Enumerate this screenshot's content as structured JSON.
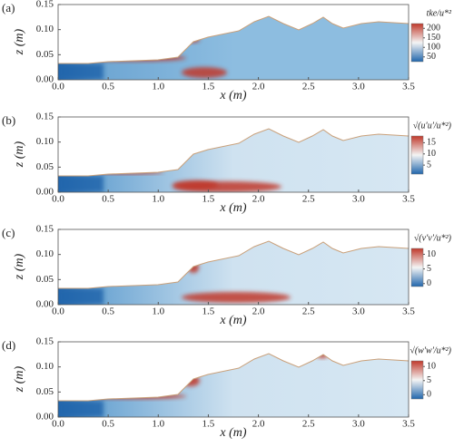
{
  "chart_data": [
    {
      "type": "heatmap",
      "panel": "(a)",
      "xlabel": "x (m)",
      "ylabel": "z (m)",
      "colorbar_label": "tke/u*²",
      "xlim": [
        0,
        3.5
      ],
      "ylim": [
        0,
        0.15
      ],
      "xticks": [
        {
          "value": 0,
          "label": "0.0"
        },
        {
          "value": 0.5,
          "label": "0.5"
        },
        {
          "value": 1,
          "label": "1.0"
        },
        {
          "value": 1.5,
          "label": "1.5"
        },
        {
          "value": 2,
          "label": "2.0"
        },
        {
          "value": 2.5,
          "label": "2.5"
        },
        {
          "value": 3,
          "label": "3.0"
        },
        {
          "value": 3.5,
          "label": "3.5"
        }
      ],
      "yticks": [
        {
          "value": 0,
          "label": "0.00"
        },
        {
          "value": 0.05,
          "label": "0.05"
        },
        {
          "value": 0.1,
          "label": "0.10"
        },
        {
          "value": 0.15,
          "label": "0.15"
        }
      ],
      "clim": [
        25,
        225
      ],
      "cticks": [
        50,
        100,
        150,
        200
      ],
      "colors": [
        "#2166ac",
        "#f4f4f4",
        "#c0392b"
      ]
    },
    {
      "type": "heatmap",
      "panel": "(b)",
      "xlabel": "x (m)",
      "ylabel": "z (m)",
      "colorbar_label": "√(u′u′/u*²)",
      "xlim": [
        0,
        3.5
      ],
      "ylim": [
        0,
        0.15
      ],
      "xticks": [
        {
          "value": 0,
          "label": "0.0"
        },
        {
          "value": 0.5,
          "label": "0.5"
        },
        {
          "value": 1,
          "label": "1.0"
        },
        {
          "value": 1.5,
          "label": "1.5"
        },
        {
          "value": 2,
          "label": "2.0"
        },
        {
          "value": 2.5,
          "label": "2.5"
        },
        {
          "value": 3,
          "label": "3.0"
        },
        {
          "value": 3.5,
          "label": "3.5"
        }
      ],
      "yticks": [
        {
          "value": 0,
          "label": "0.00"
        },
        {
          "value": 0.05,
          "label": "0.05"
        },
        {
          "value": 0.1,
          "label": "0.10"
        },
        {
          "value": 0.15,
          "label": "0.15"
        }
      ],
      "clim": [
        1,
        18
      ],
      "cticks": [
        5,
        10,
        15
      ],
      "colors": [
        "#2166ac",
        "#f4f4f4",
        "#c0392b"
      ]
    },
    {
      "type": "heatmap",
      "panel": "(c)",
      "xlabel": "x (m)",
      "ylabel": "z (m)",
      "colorbar_label": "√(v′v′/u*²)",
      "xlim": [
        0,
        3.5
      ],
      "ylim": [
        0,
        0.15
      ],
      "xticks": [
        {
          "value": 0,
          "label": "0.0"
        },
        {
          "value": 0.5,
          "label": "0.5"
        },
        {
          "value": 1,
          "label": "1.0"
        },
        {
          "value": 1.5,
          "label": "1.5"
        },
        {
          "value": 2,
          "label": "2.0"
        },
        {
          "value": 2.5,
          "label": "2.5"
        },
        {
          "value": 3,
          "label": "3.0"
        },
        {
          "value": 3.5,
          "label": "3.5"
        }
      ],
      "yticks": [
        {
          "value": 0,
          "label": "0.00"
        },
        {
          "value": 0.05,
          "label": "0.05"
        },
        {
          "value": 0.1,
          "label": "0.10"
        },
        {
          "value": 0.15,
          "label": "0.15"
        }
      ],
      "clim": [
        -1,
        12
      ],
      "cticks": [
        0,
        5,
        10
      ],
      "colors": [
        "#2166ac",
        "#f4f4f4",
        "#c0392b"
      ]
    },
    {
      "type": "heatmap",
      "panel": "(d)",
      "xlabel": "x (m)",
      "ylabel": "z (m)",
      "colorbar_label": "√(w′w′/u*²)",
      "xlim": [
        0,
        3.5
      ],
      "ylim": [
        0,
        0.15
      ],
      "xticks": [
        {
          "value": 0,
          "label": "0.0"
        },
        {
          "value": 0.5,
          "label": "0.5"
        },
        {
          "value": 1,
          "label": "1.0"
        },
        {
          "value": 1.5,
          "label": "1.5"
        },
        {
          "value": 2,
          "label": "2.0"
        },
        {
          "value": 2.5,
          "label": "2.5"
        },
        {
          "value": 3,
          "label": "3.0"
        },
        {
          "value": 3.5,
          "label": "3.5"
        }
      ],
      "yticks": [
        {
          "value": 0,
          "label": "0.00"
        },
        {
          "value": 0.05,
          "label": "0.05"
        },
        {
          "value": 0.1,
          "label": "0.10"
        },
        {
          "value": 0.15,
          "label": "0.15"
        }
      ],
      "clim": [
        -1.5,
        12
      ],
      "cticks": [
        0,
        5,
        10
      ],
      "colors": [
        "#2166ac",
        "#f4f4f4",
        "#c0392b"
      ]
    }
  ]
}
